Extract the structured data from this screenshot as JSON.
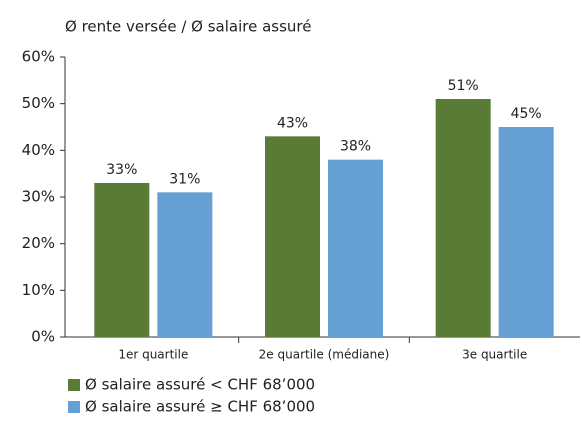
{
  "chart_data": {
    "type": "bar",
    "title": "Ø rente versée / Ø salaire assuré",
    "categories": [
      "1er quartile",
      "2e quartile (médiane)",
      "3e quartile"
    ],
    "series": [
      {
        "name": "Ø salaire assuré < CHF 68’000",
        "color": "#5a7b36",
        "values": [
          33,
          43,
          51
        ],
        "value_labels": [
          "33%",
          "43%",
          "51%"
        ]
      },
      {
        "name": "Ø salaire assuré ≥ CHF 68’000",
        "color": "#669fd3",
        "values": [
          31,
          38,
          45
        ],
        "value_labels": [
          "31%",
          "38%",
          "45%"
        ]
      }
    ],
    "ylim": [
      0,
      60
    ],
    "yticks": [
      {
        "value": 0,
        "label": "0%"
      },
      {
        "value": 10,
        "label": "10%"
      },
      {
        "value": 20,
        "label": "20%"
      },
      {
        "value": 30,
        "label": "30%"
      },
      {
        "value": 40,
        "label": "40%"
      },
      {
        "value": 50,
        "label": "50%"
      },
      {
        "value": 60,
        "label": "60%"
      }
    ],
    "grid": false,
    "legend": "bottom"
  }
}
